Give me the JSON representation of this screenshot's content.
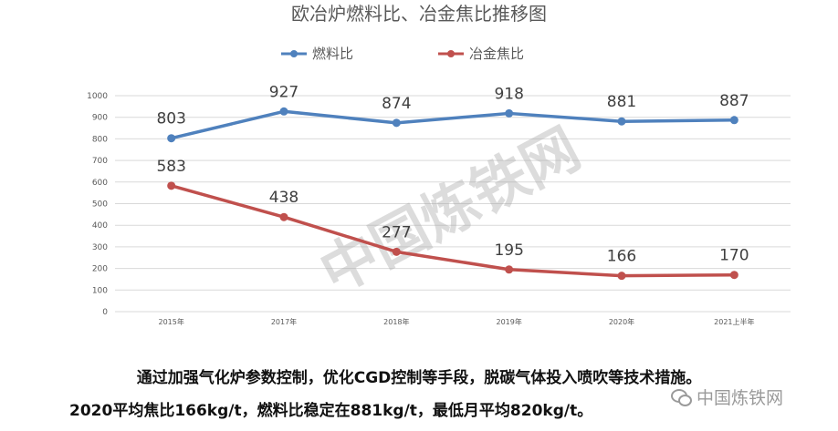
{
  "chart_data": {
    "type": "line",
    "title": "欧冶炉燃料比、冶金焦比推移图",
    "categories": [
      "2015年",
      "2017年",
      "2018年",
      "2019年",
      "2020年",
      "2021上半年"
    ],
    "series": [
      {
        "name": "燃料比",
        "values": [
          803,
          927,
          874,
          918,
          881,
          887
        ],
        "color": "#4f81bd"
      },
      {
        "name": "冶金焦比",
        "values": [
          583,
          438,
          277,
          195,
          166,
          170
        ],
        "color": "#c0504d"
      }
    ],
    "ylim": [
      0,
      1000
    ],
    "yticks": [
      0,
      100,
      200,
      300,
      400,
      500,
      600,
      700,
      800,
      900,
      1000
    ],
    "grid": true,
    "legend": "top"
  },
  "watermark": "中国炼铁网",
  "watermark_small": "中国炼铁网",
  "caption": {
    "line1": "通过加强气化炉参数控制，优化CGD控制等手段，脱碳气体投入喷吹等技术措施。",
    "line2": "2020平均焦比166kg/t，燃料比稳定在881kg/t，最低月平均820kg/t。"
  },
  "icons": {
    "wechat": "wechat-icon"
  }
}
